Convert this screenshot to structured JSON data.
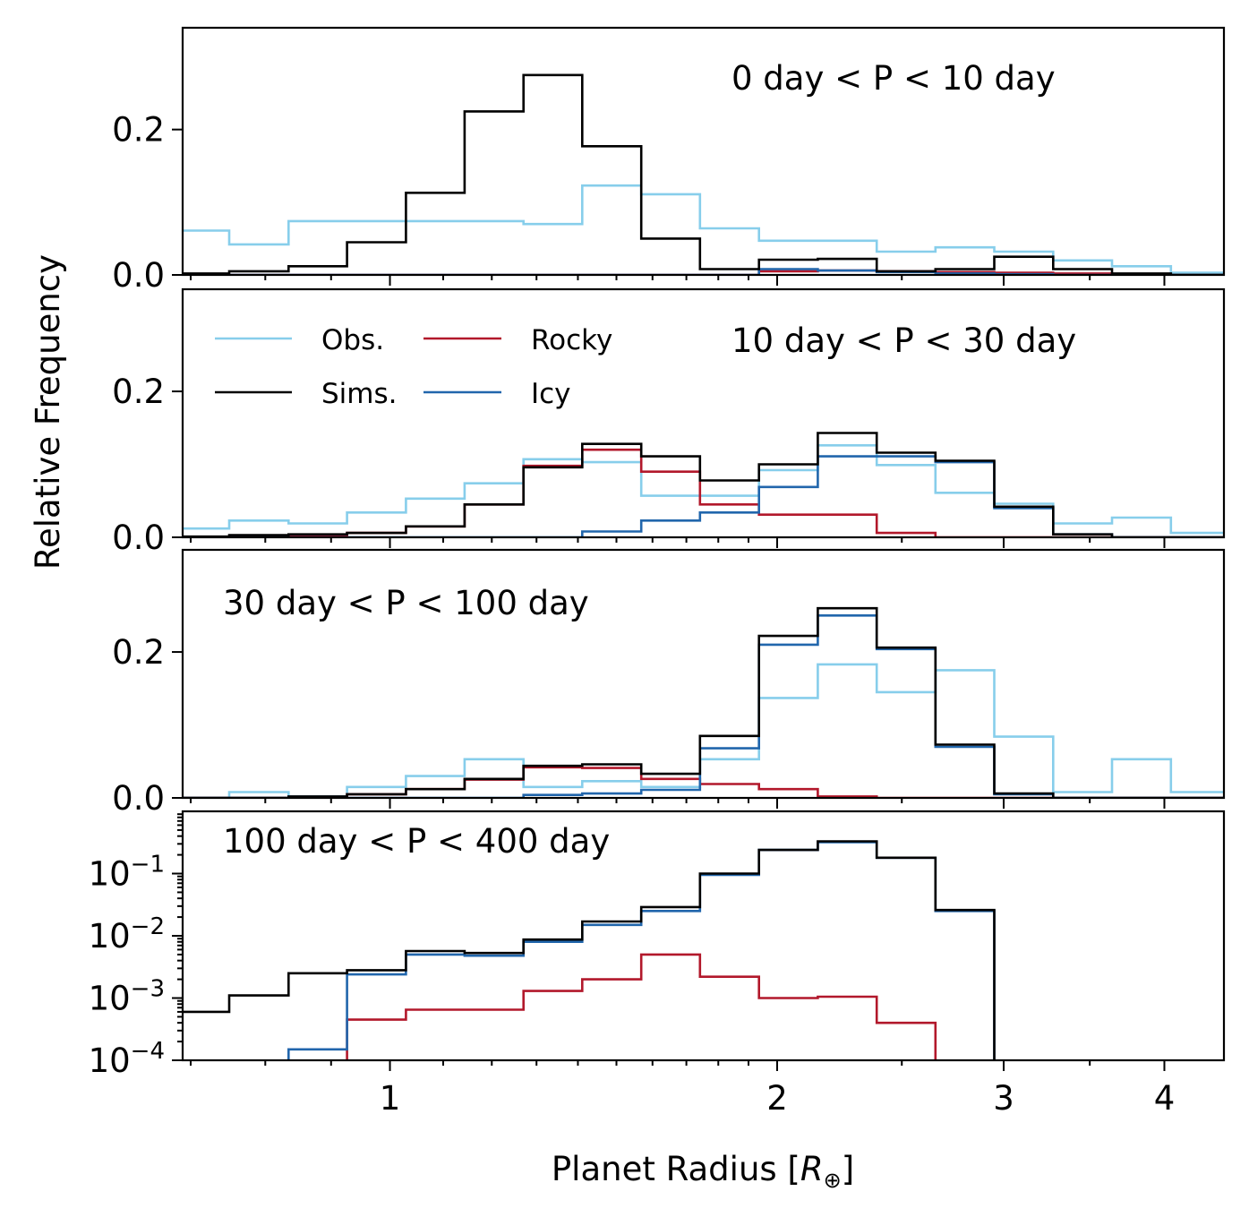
{
  "chart_data": {
    "type": "step-histogram",
    "ylabel": "Relative Frequency",
    "xlabel": "Planet Radius [",
    "xlabel_symbol": "R",
    "xlabel_subscript": "⊕",
    "xlabel_close": "]",
    "x_scale": "log",
    "xlim": [
      0.69,
      4.45
    ],
    "x_ticks": [
      {
        "value": 1,
        "label": "1"
      },
      {
        "value": 2,
        "label": "2"
      },
      {
        "value": 3,
        "label": "3"
      },
      {
        "value": 4,
        "label": "4"
      }
    ],
    "bin_edges": [
      0.676,
      0.75,
      0.834,
      0.926,
      1.029,
      1.143,
      1.27,
      1.411,
      1.568,
      1.742,
      1.936,
      2.151,
      2.39,
      2.655,
      2.95,
      3.278,
      3.642,
      4.047,
      4.497
    ],
    "colors": {
      "Obs.": "#87ceeb",
      "Sims.": "#000000",
      "Rocky": "#b2182b",
      "Icy": "#2166ac"
    },
    "legend": [
      {
        "name": "Obs.",
        "color": "#87ceeb"
      },
      {
        "name": "Sims.",
        "color": "#000000"
      },
      {
        "name": "Rocky",
        "color": "#b2182b"
      },
      {
        "name": "Icy",
        "color": "#2166ac"
      }
    ],
    "panels": [
      {
        "title": "0 day < P < 10 day",
        "y_scale": "linear",
        "ylim": [
          0,
          0.34
        ],
        "y_ticks": [
          {
            "value": 0,
            "label": "0.0"
          },
          {
            "value": 0.2,
            "label": "0.2"
          }
        ],
        "series": [
          {
            "name": "Obs.",
            "values": [
              0.061,
              0.042,
              0.074,
              0.074,
              0.074,
              0.074,
              0.07,
              0.123,
              0.111,
              0.064,
              0.047,
              0.047,
              0.032,
              0.038,
              0.032,
              0.02,
              0.012,
              0.003
            ]
          },
          {
            "name": "Rocky",
            "values": [
              0,
              0,
              0,
              0,
              0,
              0,
              0,
              0,
              0,
              0,
              0.005,
              0.006,
              0.005,
              0.004,
              0.003,
              0.002,
              0,
              0
            ]
          },
          {
            "name": "Icy",
            "values": [
              0,
              0,
              0,
              0,
              0,
              0,
              0,
              0,
              0,
              0,
              0.008,
              0.006,
              0.004,
              0.002,
              0.001,
              0,
              0,
              0
            ]
          },
          {
            "name": "Sims.",
            "values": [
              0.002,
              0.005,
              0.012,
              0.045,
              0.113,
              0.225,
              0.275,
              0.177,
              0.05,
              0.008,
              0.021,
              0.022,
              0.005,
              0.008,
              0.025,
              0.008,
              0.002,
              0
            ]
          }
        ]
      },
      {
        "title": "10 day < P < 30 day",
        "y_scale": "linear",
        "ylim": [
          0,
          0.34
        ],
        "y_ticks": [
          {
            "value": 0,
            "label": "0.0"
          },
          {
            "value": 0.2,
            "label": "0.2"
          }
        ],
        "series": [
          {
            "name": "Obs.",
            "values": [
              0.012,
              0.023,
              0.019,
              0.034,
              0.053,
              0.074,
              0.107,
              0.103,
              0.057,
              0.057,
              0.092,
              0.126,
              0.099,
              0.061,
              0.046,
              0.019,
              0.027,
              0.006
            ]
          },
          {
            "name": "Rocky",
            "values": [
              0,
              0,
              0.002,
              0.006,
              0.015,
              0.045,
              0.098,
              0.12,
              0.09,
              0.045,
              0.031,
              0.031,
              0.006,
              0,
              0,
              0,
              0,
              0
            ]
          },
          {
            "name": "Icy",
            "values": [
              0,
              0,
              0,
              0,
              0,
              0,
              0,
              0.008,
              0.023,
              0.034,
              0.069,
              0.111,
              0.111,
              0.103,
              0.04,
              0.004,
              0,
              0
            ]
          },
          {
            "name": "Sims.",
            "values": [
              0.001,
              0.003,
              0.004,
              0.006,
              0.015,
              0.045,
              0.096,
              0.128,
              0.111,
              0.078,
              0.1,
              0.143,
              0.116,
              0.105,
              0.042,
              0.004,
              0,
              0
            ]
          }
        ]
      },
      {
        "title": "30 day < P < 100 day",
        "y_scale": "linear",
        "ylim": [
          0,
          0.34
        ],
        "y_ticks": [
          {
            "value": 0,
            "label": "0.0"
          },
          {
            "value": 0.2,
            "label": "0.2"
          }
        ],
        "series": [
          {
            "name": "Obs.",
            "values": [
              0,
              0.008,
              0.002,
              0.015,
              0.03,
              0.053,
              0.015,
              0.023,
              0.015,
              0.053,
              0.137,
              0.183,
              0.145,
              0.175,
              0.084,
              0.008,
              0.053,
              0.008
            ]
          },
          {
            "name": "Rocky",
            "values": [
              0,
              0,
              0,
              0.005,
              0.012,
              0.025,
              0.042,
              0.041,
              0.026,
              0.019,
              0.012,
              0.002,
              0,
              0,
              0,
              0,
              0,
              0
            ]
          },
          {
            "name": "Icy",
            "values": [
              0,
              0,
              0,
              0,
              0,
              0,
              0.004,
              0.006,
              0.011,
              0.068,
              0.21,
              0.25,
              0.204,
              0.07,
              0.005,
              0,
              0,
              0
            ]
          },
          {
            "name": "Sims.",
            "values": [
              0,
              0,
              0.002,
              0.005,
              0.012,
              0.026,
              0.044,
              0.046,
              0.033,
              0.085,
              0.222,
              0.26,
              0.206,
              0.073,
              0.006,
              0,
              0,
              0
            ]
          }
        ]
      },
      {
        "title": "100 day < P < 400 day",
        "y_scale": "log",
        "ylim": [
          0.0001,
          1.0
        ],
        "y_ticks": [
          {
            "value": 0.0001,
            "base": "10",
            "exp": "−4"
          },
          {
            "value": 0.001,
            "base": "10",
            "exp": "−3"
          },
          {
            "value": 0.01,
            "base": "10",
            "exp": "−2"
          },
          {
            "value": 0.1,
            "base": "10",
            "exp": "−1"
          }
        ],
        "series": [
          {
            "name": "Rocky",
            "values": [
              0,
              0,
              0,
              0.00045,
              0.00065,
              0.00065,
              0.0013,
              0.002,
              0.005,
              0.0022,
              0.001,
              0.00105,
              0.0004,
              0,
              0,
              0,
              0,
              0
            ]
          },
          {
            "name": "Icy",
            "values": [
              0,
              0,
              0.00015,
              0.0024,
              0.005,
              0.0048,
              0.008,
              0.015,
              0.025,
              0.095,
              0.24,
              0.32,
              0.18,
              0.025,
              0,
              0,
              0,
              0
            ]
          },
          {
            "name": "Sims.",
            "values": [
              0.0006,
              0.0011,
              0.0025,
              0.0028,
              0.0057,
              0.0053,
              0.0087,
              0.017,
              0.029,
              0.1,
              0.24,
              0.33,
              0.18,
              0.026,
              0,
              0,
              0,
              0
            ]
          }
        ]
      }
    ]
  }
}
